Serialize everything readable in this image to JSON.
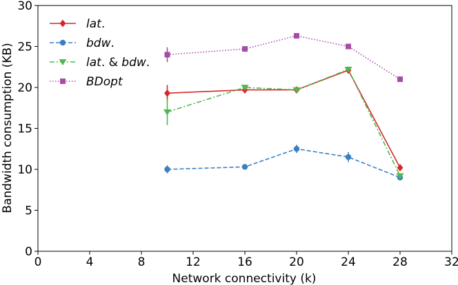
{
  "chart_data": {
    "type": "line",
    "title": "",
    "xlabel": "Network connectivity (k)",
    "ylabel": "Bandwidth consumption (KB)",
    "xlim": [
      0,
      32
    ],
    "ylim": [
      0,
      30
    ],
    "xticks": [
      "0",
      "4",
      "8",
      "12",
      "16",
      "20",
      "24",
      "28",
      "32"
    ],
    "yticks": [
      "0",
      "5",
      "10",
      "15",
      "20",
      "25",
      "30"
    ],
    "grid": false,
    "legend_position": "top-left",
    "series": [
      {
        "name": "lat.",
        "color": "#d62728",
        "marker": "diamond",
        "line_style": "solid",
        "x": [
          10,
          16,
          20,
          24,
          28
        ],
        "y": [
          19.3,
          19.7,
          19.7,
          22.1,
          10.2
        ],
        "error": [
          1.0,
          0.3,
          0.3,
          0.3,
          0.2
        ]
      },
      {
        "name": "bdw.",
        "color": "#3a7fc1",
        "marker": "circle",
        "line_style": "dashed",
        "x": [
          10,
          16,
          20,
          24,
          28
        ],
        "y": [
          10.0,
          10.3,
          12.5,
          11.5,
          9.0
        ],
        "error": [
          0.5,
          0.2,
          0.5,
          0.6,
          0.2
        ]
      },
      {
        "name": "lat. & bdw.",
        "color": "#4fb84f",
        "marker": "triangle-down",
        "line_style": "dashdot",
        "x": [
          10,
          16,
          20,
          24,
          28
        ],
        "y": [
          17.0,
          20.0,
          19.7,
          22.2,
          9.2
        ],
        "error": [
          1.6,
          0.3,
          0.3,
          0.3,
          0.3
        ]
      },
      {
        "name": "BDopt",
        "color": "#a64ca6",
        "marker": "square",
        "line_style": "dotted",
        "x": [
          10,
          16,
          20,
          24,
          28
        ],
        "y": [
          24.0,
          24.7,
          26.3,
          25.0,
          21.0
        ],
        "error": [
          0.9,
          0.2,
          0.2,
          0.2,
          0.2
        ]
      }
    ]
  }
}
